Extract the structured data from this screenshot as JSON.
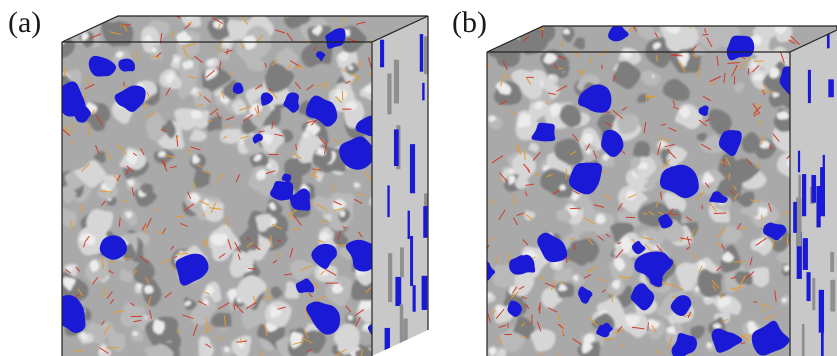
{
  "panels": [
    {
      "label": "(a)"
    },
    {
      "label": "(b)"
    }
  ],
  "colors": {
    "background": "#ffffff",
    "surface_gray": "#b9b9b9",
    "surface_shadow": "#7d7d7d",
    "pore_blue": "#1a1ad6",
    "bond_orange": "#e59a2f",
    "bond_red": "#d23a2a",
    "box_edge": "#222222"
  }
}
